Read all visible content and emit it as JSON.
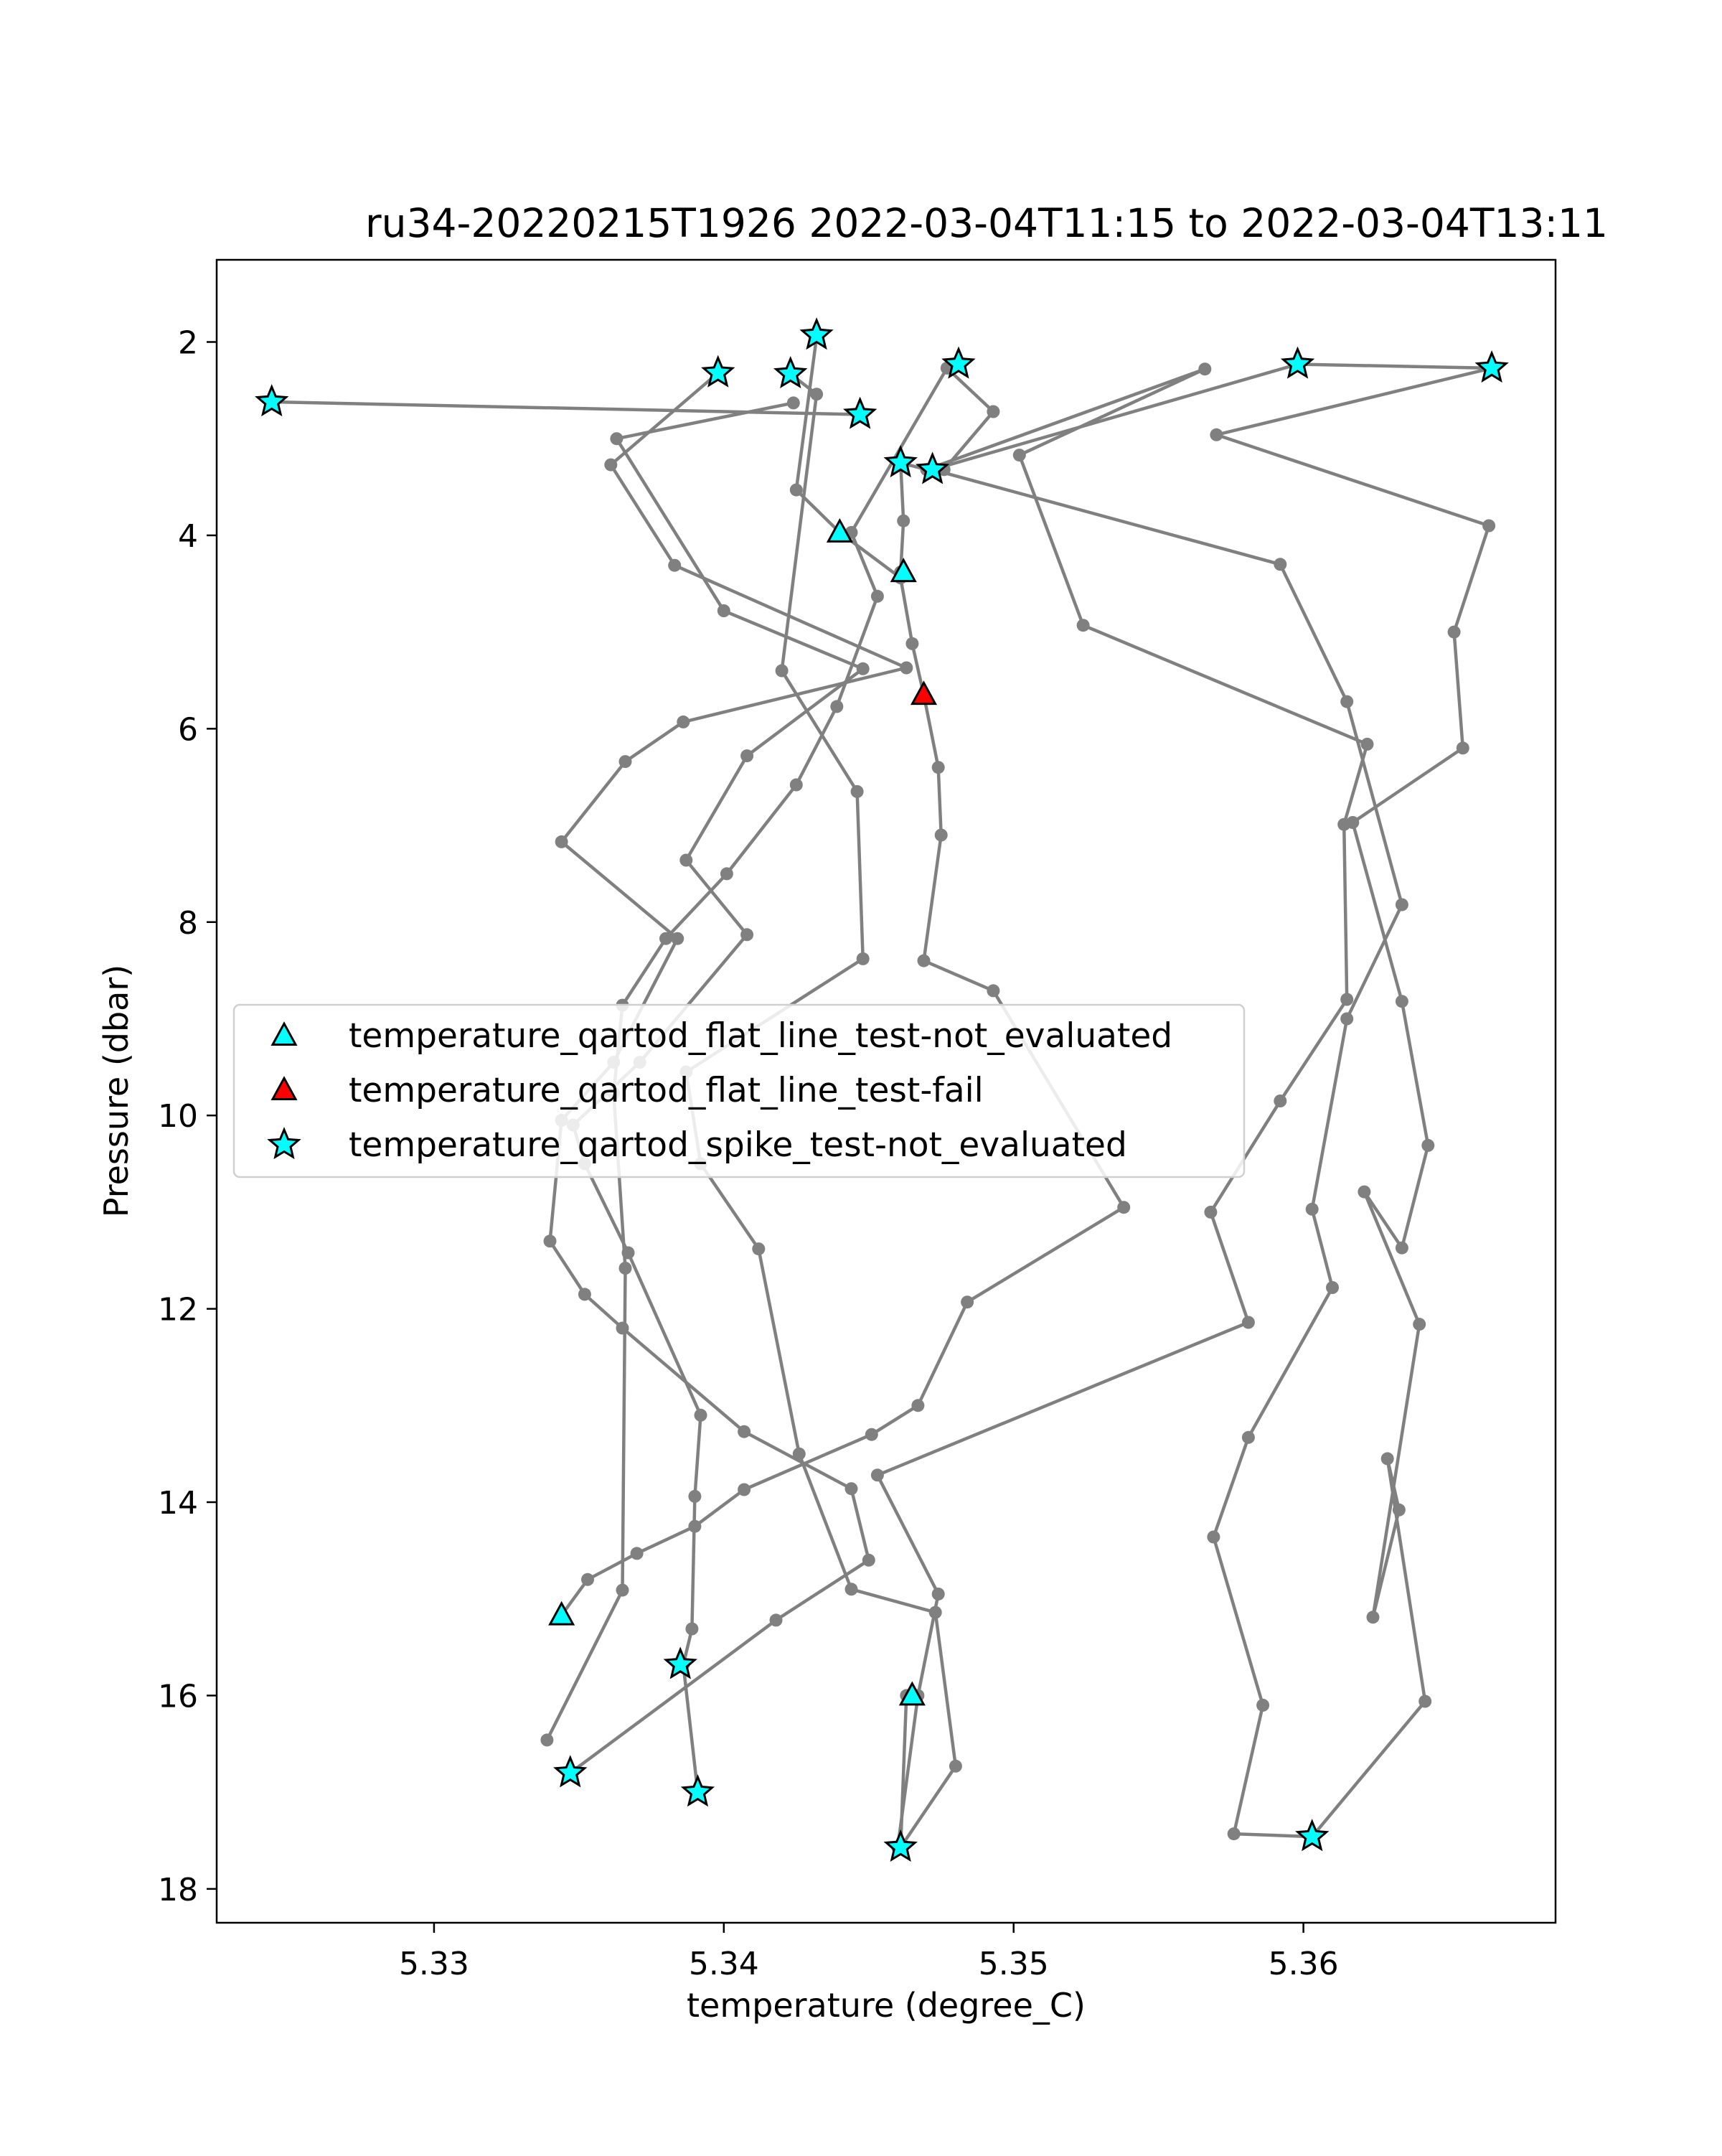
{
  "chart_data": {
    "type": "scatter",
    "title": "ru34-20220215T1926 2022-03-04T11:15 to 2022-03-04T13:11",
    "xlabel": "temperature (degree_C)",
    "ylabel": "Pressure (dbar)",
    "xlim": [
      5.3225,
      5.3687
    ],
    "ylim": [
      18.35,
      1.15
    ],
    "y_inverted": true,
    "x_ticks": [
      5.33,
      5.34,
      5.35,
      5.36
    ],
    "x_tick_labels": [
      "5.33",
      "5.34",
      "5.35",
      "5.36"
    ],
    "y_ticks": [
      2,
      4,
      6,
      8,
      10,
      12,
      14,
      16,
      18
    ],
    "y_tick_labels": [
      "2",
      "4",
      "6",
      "8",
      "10",
      "12",
      "14",
      "16",
      "18"
    ],
    "grid": false,
    "legend_position": "center-left",
    "colors": {
      "profile_line": "#808080",
      "not_evaluated": "#00ffff",
      "fail": "#ff0000",
      "marker_edge": "#000000"
    },
    "series": [
      {
        "type": "line",
        "marker": "dot",
        "values": [
          [
            5.3347,
            16.8
          ],
          [
            5.3418,
            15.22
          ],
          [
            5.345,
            14.6
          ],
          [
            5.3444,
            13.86
          ],
          [
            5.3407,
            13.27
          ],
          [
            5.3365,
            12.2
          ],
          [
            5.3352,
            11.85
          ],
          [
            5.334,
            11.3
          ],
          [
            5.3344,
            10.05
          ],
          [
            5.3362,
            9.45
          ],
          [
            5.3384,
            8.17
          ],
          [
            5.3344,
            7.17
          ],
          [
            5.3366,
            6.34
          ],
          [
            5.3386,
            5.93
          ],
          [
            5.3463,
            5.37
          ],
          [
            5.3383,
            4.31
          ],
          [
            5.3361,
            3.27
          ],
          [
            5.3398,
            2.32
          ]
        ]
      },
      {
        "type": "line",
        "marker": "dot",
        "values": [
          [
            5.3391,
            17.0
          ],
          [
            5.3386,
            15.68
          ],
          [
            5.3389,
            15.31
          ],
          [
            5.339,
            13.94
          ],
          [
            5.3392,
            13.1
          ],
          [
            5.3367,
            11.42
          ],
          [
            5.3352,
            10.5
          ],
          [
            5.3348,
            10.1
          ],
          [
            5.3371,
            9.45
          ],
          [
            5.3408,
            8.13
          ],
          [
            5.3387,
            7.36
          ],
          [
            5.3408,
            6.28
          ],
          [
            5.3448,
            5.38
          ],
          [
            5.34,
            4.78
          ],
          [
            5.3363,
            3.0
          ],
          [
            5.3424,
            2.63
          ]
        ]
      },
      {
        "type": "line",
        "marker": "dot",
        "values": [
          [
            5.3463,
            16.0
          ],
          [
            5.3461,
            17.57
          ],
          [
            5.348,
            16.73
          ],
          [
            5.3473,
            15.14
          ],
          [
            5.3444,
            14.9
          ],
          [
            5.3426,
            13.5
          ],
          [
            5.3412,
            11.38
          ],
          [
            5.3392,
            10.5
          ],
          [
            5.3387,
            9.55
          ],
          [
            5.3448,
            8.38
          ],
          [
            5.3446,
            6.65
          ],
          [
            5.342,
            5.4
          ],
          [
            5.3432,
            2.54
          ],
          [
            5.3423,
            2.33
          ]
        ]
      },
      {
        "type": "line",
        "marker": "dot",
        "values": [
          [
            5.3344,
            15.17
          ],
          [
            5.3353,
            14.8
          ],
          [
            5.337,
            14.53
          ],
          [
            5.339,
            14.25
          ],
          [
            5.3407,
            13.87
          ],
          [
            5.3451,
            13.3
          ],
          [
            5.3467,
            13.0
          ],
          [
            5.3484,
            11.93
          ],
          [
            5.3538,
            10.95
          ],
          [
            5.3493,
            8.71
          ],
          [
            5.3469,
            8.4
          ],
          [
            5.3475,
            7.1
          ],
          [
            5.3474,
            6.4
          ],
          [
            5.3469,
            5.65
          ],
          [
            5.3465,
            5.12
          ],
          [
            5.3461,
            4.44
          ],
          [
            5.344,
            3.97
          ],
          [
            5.3425,
            3.53
          ],
          [
            5.3432,
            1.95
          ]
        ]
      },
      {
        "type": "line",
        "marker": "dot",
        "values": [
          [
            5.3339,
            16.46
          ],
          [
            5.3365,
            14.91
          ],
          [
            5.3366,
            11.58
          ],
          [
            5.3362,
            9.77
          ],
          [
            5.3365,
            8.86
          ],
          [
            5.338,
            8.17
          ],
          [
            5.3401,
            7.5
          ],
          [
            5.3425,
            6.58
          ],
          [
            5.3439,
            5.77
          ],
          [
            5.3453,
            4.63
          ],
          [
            5.3444,
            3.97
          ],
          [
            5.3477,
            2.27
          ],
          [
            5.3493,
            2.72
          ],
          [
            5.3476,
            3.32
          ]
        ]
      },
      {
        "type": "line",
        "marker": "dot",
        "values": [
          [
            5.346,
            17.57
          ],
          [
            5.3467,
            16.0
          ],
          [
            5.3474,
            14.95
          ],
          [
            5.3453,
            13.72
          ],
          [
            5.3581,
            12.14
          ],
          [
            5.3568,
            11.0
          ],
          [
            5.3592,
            9.85
          ],
          [
            5.3615,
            8.8
          ],
          [
            5.3614,
            6.99
          ],
          [
            5.3622,
            6.16
          ],
          [
            5.3524,
            4.93
          ],
          [
            5.3502,
            3.17
          ],
          [
            5.3566,
            2.28
          ],
          [
            5.347,
            3.32
          ],
          [
            5.3461,
            3.25
          ],
          [
            5.3462,
            3.85
          ],
          [
            5.3461,
            4.38
          ]
        ]
      },
      {
        "type": "line",
        "marker": "dot",
        "values": [
          [
            5.3603,
            17.46
          ],
          [
            5.3576,
            17.43
          ],
          [
            5.3586,
            16.1
          ],
          [
            5.3569,
            14.36
          ],
          [
            5.3581,
            13.33
          ],
          [
            5.361,
            11.78
          ],
          [
            5.3603,
            10.97
          ],
          [
            5.3615,
            9.0
          ],
          [
            5.3634,
            7.82
          ],
          [
            5.3615,
            5.72
          ],
          [
            5.3592,
            4.3
          ],
          [
            5.3472,
            3.32
          ],
          [
            5.3598,
            2.23
          ],
          [
            5.3665,
            2.27
          ],
          [
            5.357,
            2.96
          ],
          [
            5.3664,
            3.9
          ],
          [
            5.3652,
            5.0
          ],
          [
            5.3655,
            6.2
          ],
          [
            5.3617,
            6.97
          ],
          [
            5.3634,
            8.82
          ],
          [
            5.3643,
            10.31
          ],
          [
            5.3634,
            11.37
          ],
          [
            5.3621,
            10.79
          ],
          [
            5.364,
            12.16
          ],
          [
            5.3624,
            15.19
          ],
          [
            5.3633,
            14.08
          ],
          [
            5.3629,
            13.55
          ],
          [
            5.3642,
            16.06
          ],
          [
            5.3603,
            17.46
          ]
        ]
      },
      {
        "type": "line",
        "marker": "dot",
        "values": [
          [
            5.3244,
            2.62
          ],
          [
            5.3447,
            2.75
          ]
        ]
      },
      {
        "name": "temperature_qartod_flat_line_test-not_evaluated",
        "type": "scatter",
        "marker": "triangle",
        "color": "#00ffff",
        "values": [
          [
            5.344,
            3.97
          ],
          [
            5.3462,
            4.38
          ],
          [
            5.3344,
            15.17
          ],
          [
            5.3465,
            16.0
          ]
        ]
      },
      {
        "name": "temperature_qartod_flat_line_test-fail",
        "type": "scatter",
        "marker": "triangle",
        "color": "#ff0000",
        "values": [
          [
            5.3469,
            5.65
          ]
        ]
      },
      {
        "name": "temperature_qartod_spike_test-not_evaluated",
        "type": "scatter",
        "marker": "star",
        "color": "#00ffff",
        "values": [
          [
            5.3244,
            2.62
          ],
          [
            5.3398,
            2.32
          ],
          [
            5.3423,
            2.33
          ],
          [
            5.3432,
            1.93
          ],
          [
            5.3447,
            2.75
          ],
          [
            5.3461,
            3.25
          ],
          [
            5.3472,
            3.32
          ],
          [
            5.3481,
            2.23
          ],
          [
            5.3598,
            2.23
          ],
          [
            5.3665,
            2.27
          ],
          [
            5.3385,
            15.68
          ],
          [
            5.3347,
            16.8
          ],
          [
            5.3391,
            17.0
          ],
          [
            5.3461,
            17.57
          ],
          [
            5.3603,
            17.46
          ]
        ]
      }
    ]
  }
}
